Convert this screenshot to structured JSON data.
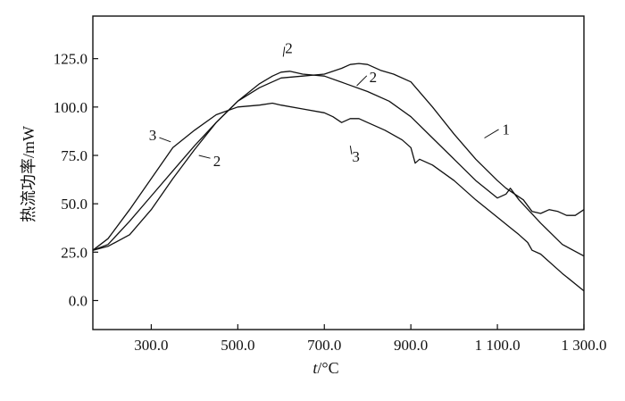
{
  "chart_data": {
    "type": "line",
    "title": "",
    "xlabel_var": "t",
    "xlabel_unit": "/°C",
    "ylabel": "热流功率/mW",
    "xlim": [
      165,
      1300
    ],
    "ylim": [
      -15,
      147
    ],
    "grid": false,
    "x_ticks": [
      300,
      500,
      700,
      900,
      1100,
      1300
    ],
    "x_tick_labels": [
      "300.0",
      "500.0",
      "700.0",
      "900.0",
      "1 100.0",
      "1 300.0"
    ],
    "y_ticks": [
      0,
      25,
      50,
      75,
      100,
      125
    ],
    "y_tick_labels": [
      "0.0",
      "25.0",
      "50.0",
      "75.0",
      "100.0",
      "125.0"
    ],
    "series": [
      {
        "name": "1",
        "x": [
          165,
          200,
          250,
          300,
          350,
          400,
          450,
          500,
          550,
          600,
          650,
          700,
          740,
          760,
          780,
          800,
          830,
          860,
          900,
          950,
          1000,
          1050,
          1100,
          1120,
          1140,
          1160,
          1180,
          1200,
          1220,
          1240,
          1260,
          1280,
          1300
        ],
        "y": [
          26,
          28,
          34,
          47,
          63,
          78,
          92,
          103,
          110,
          115,
          116,
          117,
          120,
          122,
          122.5,
          122,
          119,
          117,
          113,
          100,
          86,
          73,
          62,
          58,
          55,
          52,
          46,
          45,
          47,
          46,
          44,
          44,
          47
        ]
      },
      {
        "name": "2",
        "x": [
          165,
          200,
          250,
          300,
          350,
          400,
          450,
          500,
          550,
          580,
          600,
          620,
          650,
          700,
          750,
          800,
          850,
          900,
          950,
          1000,
          1050,
          1100,
          1120,
          1130,
          1150,
          1200,
          1250,
          1300
        ],
        "y": [
          26,
          29,
          41,
          54,
          67,
          80,
          92,
          103,
          112,
          116,
          118,
          118.5,
          117,
          116,
          112,
          108,
          103,
          95,
          84,
          73,
          62,
          53,
          55,
          58,
          52,
          40,
          29,
          23
        ]
      },
      {
        "name": "3",
        "x": [
          165,
          200,
          250,
          300,
          350,
          400,
          450,
          500,
          550,
          580,
          600,
          650,
          700,
          720,
          740,
          760,
          780,
          800,
          840,
          880,
          900,
          910,
          920,
          950,
          1000,
          1050,
          1100,
          1150,
          1170,
          1180,
          1200,
          1250,
          1300
        ],
        "y": [
          26,
          32,
          47,
          63,
          79,
          88,
          96,
          100,
          101,
          102,
          101,
          99,
          97,
          95,
          92,
          94,
          94,
          92,
          88,
          83,
          79,
          71,
          73,
          70,
          62,
          52,
          43,
          34,
          30,
          26,
          24,
          14,
          5
        ]
      }
    ],
    "curve_labels": [
      {
        "text": "1",
        "at": [
          1070,
          84
        ]
      },
      {
        "text": "2",
        "at": [
          605,
          126
        ]
      },
      {
        "text": "2",
        "at": [
          775,
          111
        ]
      },
      {
        "text": "2",
        "at": [
          410,
          75
        ]
      },
      {
        "text": "3",
        "at": [
          345,
          82
        ]
      },
      {
        "text": "3",
        "at": [
          760,
          80
        ]
      }
    ]
  }
}
